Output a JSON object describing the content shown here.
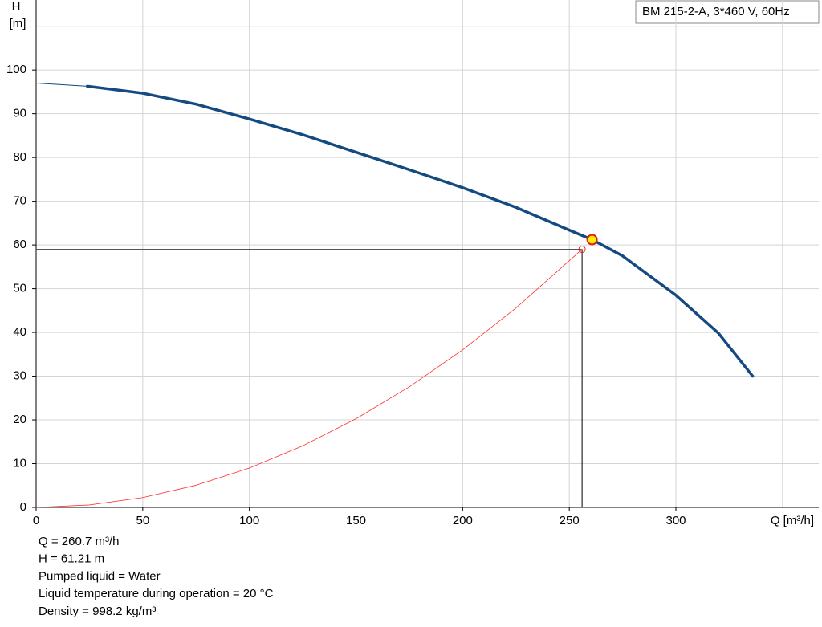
{
  "chart_data": {
    "type": "line",
    "title": "BM 215-2-A, 3*460 V, 60Hz",
    "ylabel": "H",
    "yunit": "[m]",
    "xlabel": "Q [m³/h]",
    "xlim": [
      0,
      367
    ],
    "ylim": [
      0,
      116
    ],
    "xticks": [
      0,
      50,
      100,
      150,
      200,
      250,
      300
    ],
    "yticks": [
      0,
      10,
      20,
      30,
      40,
      50,
      60,
      70,
      80,
      90,
      100
    ],
    "xgrid": [
      0,
      50,
      100,
      150,
      200,
      250,
      300,
      350
    ],
    "ygrid": [
      0,
      10,
      20,
      30,
      40,
      50,
      60,
      70,
      80,
      90,
      100,
      110
    ],
    "grid": true,
    "series": [
      {
        "color": "#154a80",
        "width": 1,
        "x": [
          0,
          24
        ],
        "values": [
          97,
          96.3
        ]
      },
      {
        "color": "#154a80",
        "width": 3.5,
        "x": [
          24,
          50,
          75,
          100,
          125,
          150,
          175,
          200,
          225,
          250,
          260.7,
          275,
          300,
          320,
          336
        ],
        "values": [
          96.3,
          94.7,
          92.2,
          88.8,
          85.2,
          81.2,
          77.2,
          73.1,
          68.6,
          63.4,
          61.21,
          57.5,
          48.5,
          39.8,
          30
        ]
      },
      {
        "color": "#ff3030",
        "width": 0.8,
        "x": [
          0,
          25,
          50,
          75,
          100,
          125,
          150,
          175,
          200,
          225,
          256
        ],
        "values": [
          0,
          0.56,
          2.25,
          5.06,
          9.0,
          14.07,
          20.26,
          27.57,
          36.01,
          45.58,
          59
        ]
      }
    ],
    "duty_point": {
      "x": 260.7,
      "y": 61.21,
      "color": "#ffee00",
      "stroke": "#e02020"
    },
    "system_point": {
      "x": 256,
      "y": 59,
      "stroke": "#e02020"
    },
    "notes": [
      "Q = 260.7 m³/h",
      "H = 61.21 m",
      "Pumped liquid = Water",
      "Liquid temperature during operation = 20 °C",
      "Density = 998.2 kg/m³"
    ]
  }
}
